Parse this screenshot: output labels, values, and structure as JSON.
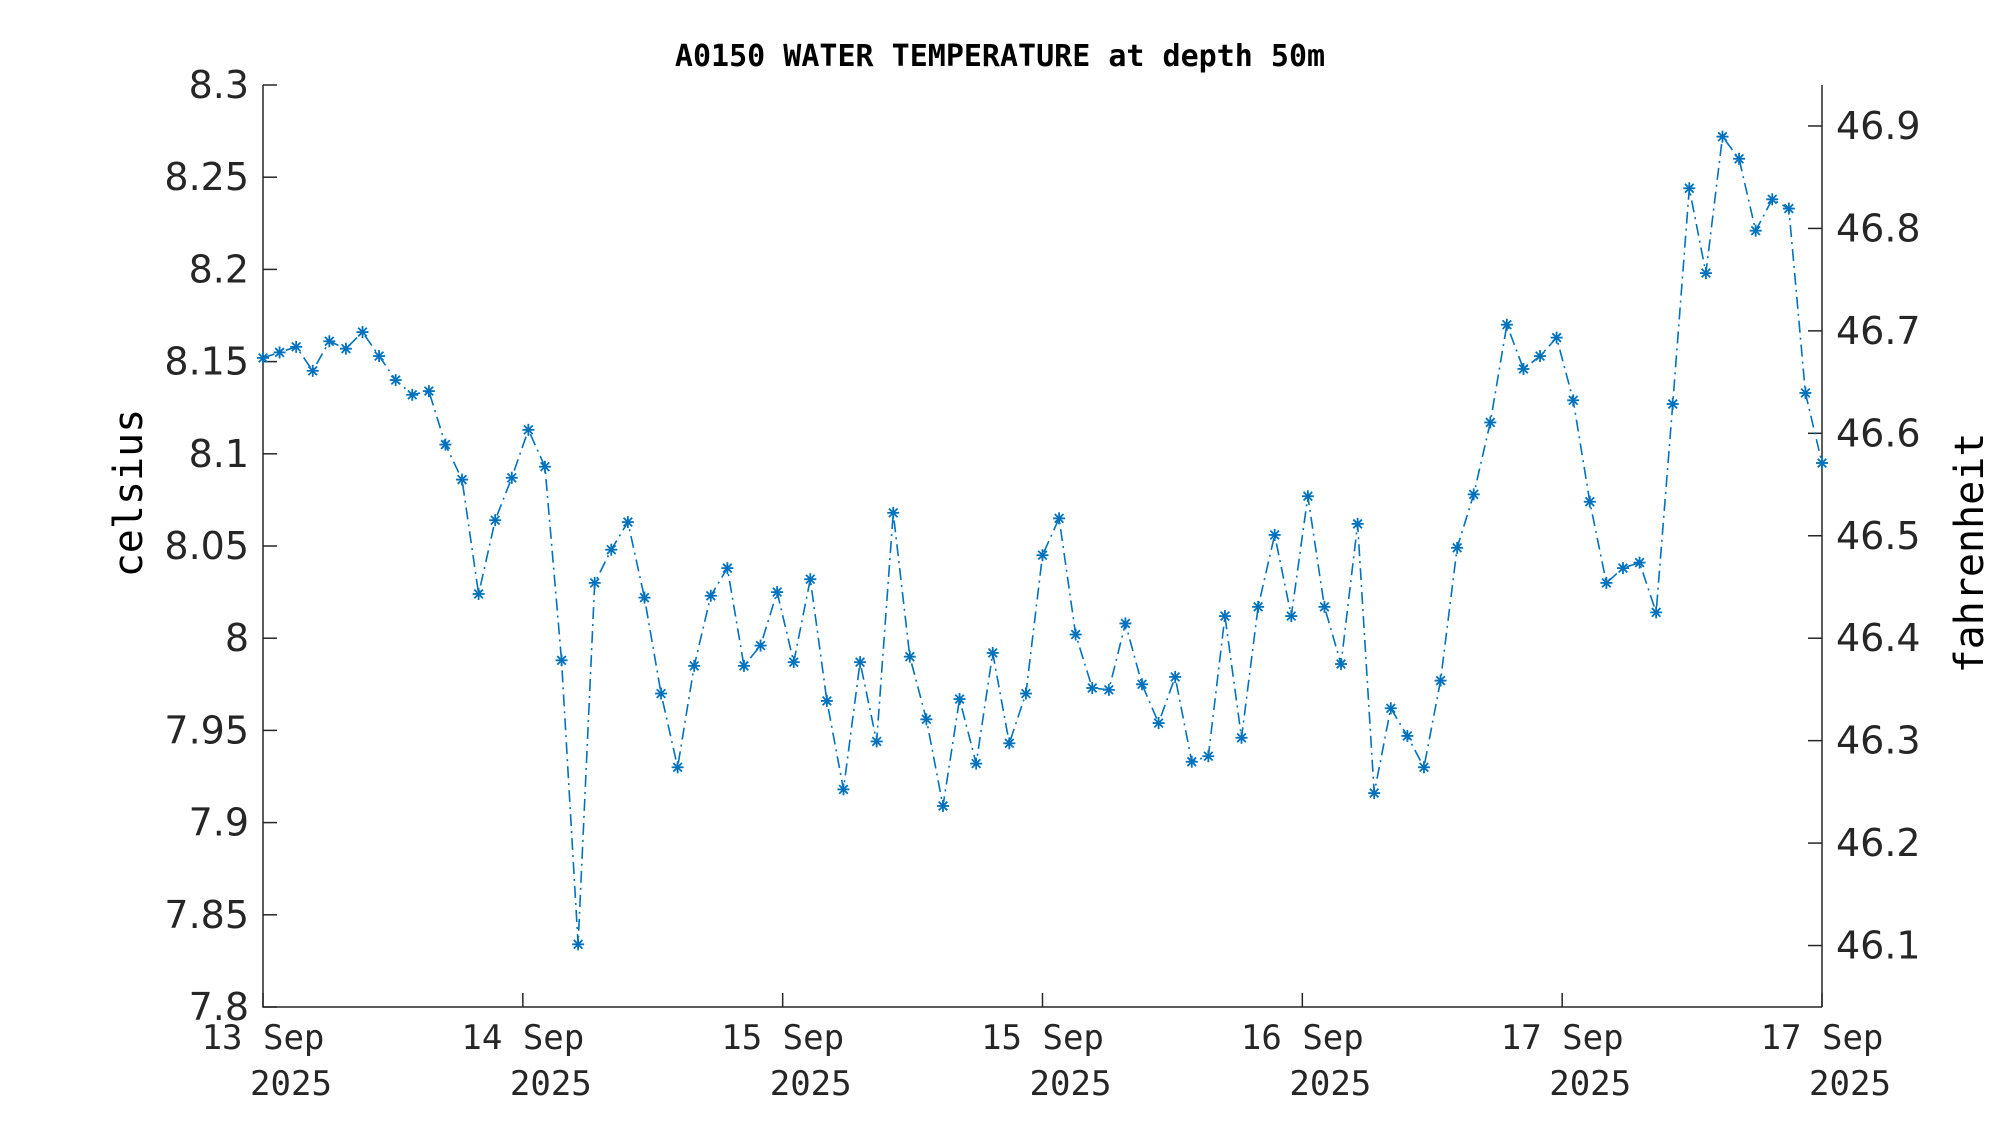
{
  "chart_data": {
    "type": "line",
    "title": "A0150 WATER TEMPERATURE at depth 50m",
    "ylabel": "celsius",
    "ylabel_right": "fahrenheit",
    "ylim": [
      7.8,
      8.3
    ],
    "yticks": [
      "7.8",
      "7.85",
      "7.9",
      "7.95",
      "8",
      "8.05",
      "8.1",
      "8.15",
      "8.2",
      "8.25",
      "8.3"
    ],
    "ylim_right": [
      46.04,
      46.94
    ],
    "yticks_right": [
      "46.1",
      "46.2",
      "46.3",
      "46.4",
      "46.5",
      "46.6",
      "46.7",
      "46.8",
      "46.9"
    ],
    "xticks": [
      {
        "line1": "13 Sep",
        "line2": "2025"
      },
      {
        "line1": "14 Sep",
        "line2": "2025"
      },
      {
        "line1": "15 Sep",
        "line2": "2025"
      },
      {
        "line1": "15 Sep",
        "line2": "2025"
      },
      {
        "line1": "16 Sep",
        "line2": "2025"
      },
      {
        "line1": "17 Sep",
        "line2": "2025"
      },
      {
        "line1": "17 Sep",
        "line2": "2025"
      }
    ],
    "grid": false,
    "series": [
      {
        "marker": "asterisk",
        "line_style": "dash-dot",
        "color": "#0072BD",
        "values": [
          8.152,
          8.155,
          8.158,
          8.145,
          8.161,
          8.157,
          8.166,
          8.153,
          8.14,
          8.132,
          8.134,
          8.105,
          8.086,
          8.024,
          8.064,
          8.087,
          8.113,
          8.093,
          7.988,
          7.834,
          8.03,
          8.048,
          8.063,
          8.022,
          7.97,
          7.93,
          7.985,
          8.023,
          8.038,
          7.985,
          7.996,
          8.025,
          7.987,
          8.032,
          7.966,
          7.918,
          7.987,
          7.944,
          8.068,
          7.99,
          7.956,
          7.909,
          7.967,
          7.932,
          7.992,
          7.943,
          7.97,
          8.045,
          8.065,
          8.002,
          7.973,
          7.972,
          8.008,
          7.975,
          7.954,
          7.979,
          7.933,
          7.936,
          8.012,
          7.946,
          8.017,
          8.056,
          8.012,
          8.077,
          8.017,
          7.986,
          8.062,
          7.916,
          7.962,
          7.947,
          7.93,
          7.977,
          8.049,
          8.078,
          8.117,
          8.17,
          8.146,
          8.153,
          8.163,
          8.129,
          8.074,
          8.03,
          8.038,
          8.041,
          8.014,
          8.127,
          8.244,
          8.198,
          8.272,
          8.26,
          8.221,
          8.238,
          8.233,
          8.133,
          8.095
        ]
      }
    ]
  }
}
